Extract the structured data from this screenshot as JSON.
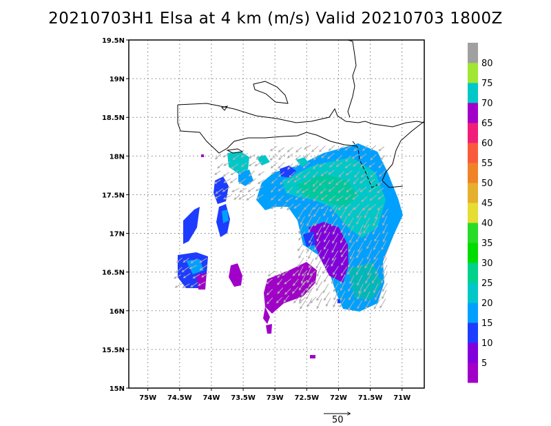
{
  "title": "20210703H1 Elsa at 4 km (m/s) Valid 20210703  1800Z",
  "map": {
    "lon_range": [
      -75.3,
      -70.65
    ],
    "lat_range": [
      15.0,
      19.5
    ],
    "lon_ticks": [
      {
        "value": -75.0,
        "label": "75W"
      },
      {
        "value": -74.5,
        "label": "74.5W"
      },
      {
        "value": -74.0,
        "label": "74W"
      },
      {
        "value": -73.5,
        "label": "73.5W"
      },
      {
        "value": -73.0,
        "label": "73W"
      },
      {
        "value": -72.5,
        "label": "72.5W"
      },
      {
        "value": -72.0,
        "label": "72W"
      },
      {
        "value": -71.5,
        "label": "71.5W"
      },
      {
        "value": -71.0,
        "label": "71W"
      }
    ],
    "lat_ticks": [
      {
        "value": 19.5,
        "label": "19.5N"
      },
      {
        "value": 19.0,
        "label": "19N"
      },
      {
        "value": 18.5,
        "label": "18.5N"
      },
      {
        "value": 18.0,
        "label": "18N"
      },
      {
        "value": 17.5,
        "label": "17.5N"
      },
      {
        "value": 17.0,
        "label": "17N"
      },
      {
        "value": 16.5,
        "label": "16.5N"
      },
      {
        "value": 16.0,
        "label": "16N"
      },
      {
        "value": 15.5,
        "label": "15.5N"
      },
      {
        "value": 15.0,
        "label": "15N"
      }
    ],
    "grid": "dotted"
  },
  "colorbar": {
    "labels": [
      "5",
      "10",
      "15",
      "20",
      "25",
      "30",
      "35",
      "40",
      "45",
      "50",
      "55",
      "60",
      "65",
      "70",
      "75",
      "80"
    ],
    "colors": [
      "#a000c8",
      "#8200dc",
      "#1e3cff",
      "#00a0ff",
      "#00c8c8",
      "#00d28c",
      "#00dc00",
      "#28dc28",
      "#e6dc32",
      "#e6af2d",
      "#f08228",
      "#fa5a3c",
      "#f01e78",
      "#a000c8",
      "#00c8c8",
      "#a0e632",
      "#a0a0a0"
    ]
  },
  "reference_vector": {
    "label": "50"
  }
}
